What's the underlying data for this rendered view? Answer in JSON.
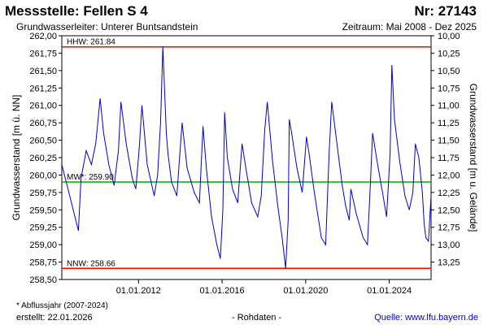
{
  "header": {
    "title": "Messstelle: Fellen S 4",
    "number": "Nr: 27143",
    "aquifer": "Grundwasserleiter:   Unterer Buntsandstein",
    "period": "Zeitraum: Mai 2008 - Dez 2025"
  },
  "footer": {
    "note": "* Abflussjahr (2007-2024)",
    "created": "erstellt:   22.01.2026",
    "raw": "- Rohdaten -",
    "source": "Quelle:  www.lfu.bayern.de"
  },
  "colors": {
    "series": "#0000cc",
    "reference": "#ff0000",
    "mean": "#00aa00"
  },
  "chart_data": {
    "type": "line",
    "ylabel": "Grundwasserstand [m ü. NN]",
    "y2label": "Grundwasserstand [m u. Gelände]",
    "ylim": [
      258.5,
      262.0
    ],
    "y2lim": [
      13.5,
      10.0
    ],
    "yticks": [
      "262,00",
      "261,75",
      "261,50",
      "261,25",
      "261,00",
      "260,75",
      "260,50",
      "260,25",
      "260,00",
      "259,75",
      "259,50",
      "259,25",
      "259,00",
      "258,75",
      "258,50"
    ],
    "y2ticks": [
      "10,00",
      "10,25",
      "10,50",
      "10,75",
      "11,00",
      "11,25",
      "11,50",
      "11,75",
      "12,00",
      "12,25",
      "12,50",
      "12,75",
      "13,00",
      "13,25"
    ],
    "xlim": [
      "2008-05-01",
      "2025-12-31"
    ],
    "xticks": [
      {
        "date": "2012-01-01",
        "label": "01.01.2012"
      },
      {
        "date": "2016-01-01",
        "label": "01.01.2016"
      },
      {
        "date": "2020-01-01",
        "label": "01.01.2020"
      },
      {
        "date": "2024-01-01",
        "label": "01.01.2024"
      }
    ],
    "reference_lines": [
      {
        "label": "HHW: 261.84",
        "value": 261.84,
        "kind": "reference"
      },
      {
        "label": "MW*: 259.90",
        "value": 259.9,
        "kind": "mean"
      },
      {
        "label": "NNW: 258.66",
        "value": 258.66,
        "kind": "reference"
      }
    ],
    "series": [
      {
        "x": [
          "2008-05-01",
          "2008-09-01",
          "2009-01-01",
          "2009-02-15",
          "2009-04-01",
          "2009-07-01",
          "2009-10-01",
          "2009-12-15",
          "2010-03-01",
          "2010-05-01",
          "2010-08-01",
          "2010-11-01",
          "2011-01-15",
          "2011-03-01",
          "2011-06-01",
          "2011-09-15",
          "2011-11-15",
          "2012-01-15",
          "2012-03-01",
          "2012-06-01",
          "2012-10-01",
          "2012-12-01",
          "2013-01-20",
          "2013-03-01",
          "2013-05-01",
          "2013-06-01",
          "2013-08-01",
          "2013-11-01",
          "2014-02-01",
          "2014-05-01",
          "2014-09-01",
          "2014-12-01",
          "2015-02-01",
          "2015-04-01",
          "2015-07-01",
          "2015-10-01",
          "2015-12-01",
          "2016-01-15",
          "2016-02-15",
          "2016-04-01",
          "2016-07-01",
          "2016-10-01",
          "2016-12-15",
          "2017-03-01",
          "2017-06-01",
          "2017-09-15",
          "2017-11-15",
          "2018-01-15",
          "2018-03-01",
          "2018-06-01",
          "2018-09-01",
          "2018-11-15",
          "2019-01-15",
          "2019-03-01",
          "2019-03-20",
          "2019-05-01",
          "2019-08-01",
          "2019-11-01",
          "2020-01-15",
          "2020-03-01",
          "2020-06-01",
          "2020-10-01",
          "2020-12-15",
          "2021-02-15",
          "2021-04-01",
          "2021-07-01",
          "2021-10-01",
          "2021-12-01",
          "2022-02-01",
          "2022-03-01",
          "2022-06-01",
          "2022-10-01",
          "2022-12-15",
          "2023-02-01",
          "2023-03-15",
          "2023-06-01",
          "2023-09-15",
          "2023-11-15",
          "2024-01-15",
          "2024-02-15",
          "2024-04-01",
          "2024-07-01",
          "2024-10-01",
          "2024-12-15",
          "2025-02-15",
          "2025-04-01",
          "2025-06-01",
          "2025-08-01",
          "2025-09-01",
          "2025-10-01",
          "2025-11-15",
          "2025-12-31"
        ],
        "values": [
          260.15,
          259.75,
          259.35,
          259.2,
          259.95,
          260.35,
          260.15,
          260.45,
          261.1,
          260.6,
          260.15,
          259.85,
          260.35,
          261.05,
          260.45,
          259.95,
          259.8,
          260.4,
          261.0,
          260.15,
          259.7,
          260.0,
          260.75,
          261.84,
          260.6,
          260.3,
          259.9,
          259.7,
          260.75,
          260.1,
          259.75,
          259.6,
          260.7,
          260.1,
          259.4,
          259.0,
          258.8,
          259.5,
          260.9,
          260.25,
          259.8,
          259.6,
          260.45,
          260.05,
          259.6,
          259.4,
          259.7,
          260.65,
          261.05,
          260.2,
          259.55,
          259.1,
          258.66,
          259.35,
          260.8,
          260.6,
          260.1,
          259.75,
          260.55,
          260.3,
          259.75,
          259.1,
          259.0,
          260.35,
          261.05,
          260.45,
          259.85,
          259.55,
          259.35,
          259.8,
          259.45,
          259.1,
          259.0,
          259.8,
          260.6,
          260.2,
          259.7,
          259.4,
          260.3,
          261.58,
          260.8,
          260.2,
          259.7,
          259.5,
          259.75,
          260.45,
          260.25,
          259.75,
          259.3,
          259.1,
          259.05,
          259.7
        ]
      }
    ]
  }
}
